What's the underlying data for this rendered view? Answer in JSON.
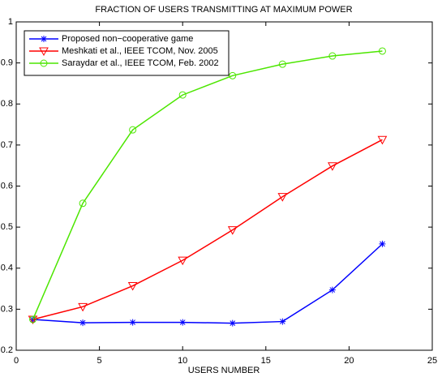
{
  "chart_data": {
    "type": "line",
    "title": "FRACTION OF USERS TRANSMITTING AT MAXIMUM POWER",
    "x_label": "USERS NUMBER",
    "x": [
      1,
      4,
      7,
      10,
      13,
      16,
      19,
      22
    ],
    "series": [
      {
        "name": "Proposed non−cooperative game",
        "color": "#0000ff",
        "marker": "asterisk",
        "values": [
          0.275,
          0.267,
          0.268,
          0.268,
          0.266,
          0.27,
          0.347,
          0.459
        ]
      },
      {
        "name": "Meshkati et al., IEEE TCOM, Nov. 2005",
        "color": "#ff0000",
        "marker": "triangle-down",
        "values": [
          0.275,
          0.306,
          0.357,
          0.419,
          0.493,
          0.574,
          0.649,
          0.713
        ]
      },
      {
        "name": "Saraydar et al., IEEE TCOM, Feb. 2002",
        "color": "#4ce600",
        "marker": "circle",
        "values": [
          0.275,
          0.558,
          0.737,
          0.822,
          0.869,
          0.897,
          0.917,
          0.929
        ]
      }
    ],
    "xlim": [
      0,
      25
    ],
    "xticks": [
      0,
      5,
      10,
      15,
      20,
      25
    ],
    "ylim": [
      0.2,
      1
    ],
    "yticks": [
      0.2,
      0.3,
      0.4,
      0.5,
      0.6,
      0.7,
      0.8,
      0.9,
      1
    ],
    "grid": false,
    "legend": "upper-left"
  }
}
